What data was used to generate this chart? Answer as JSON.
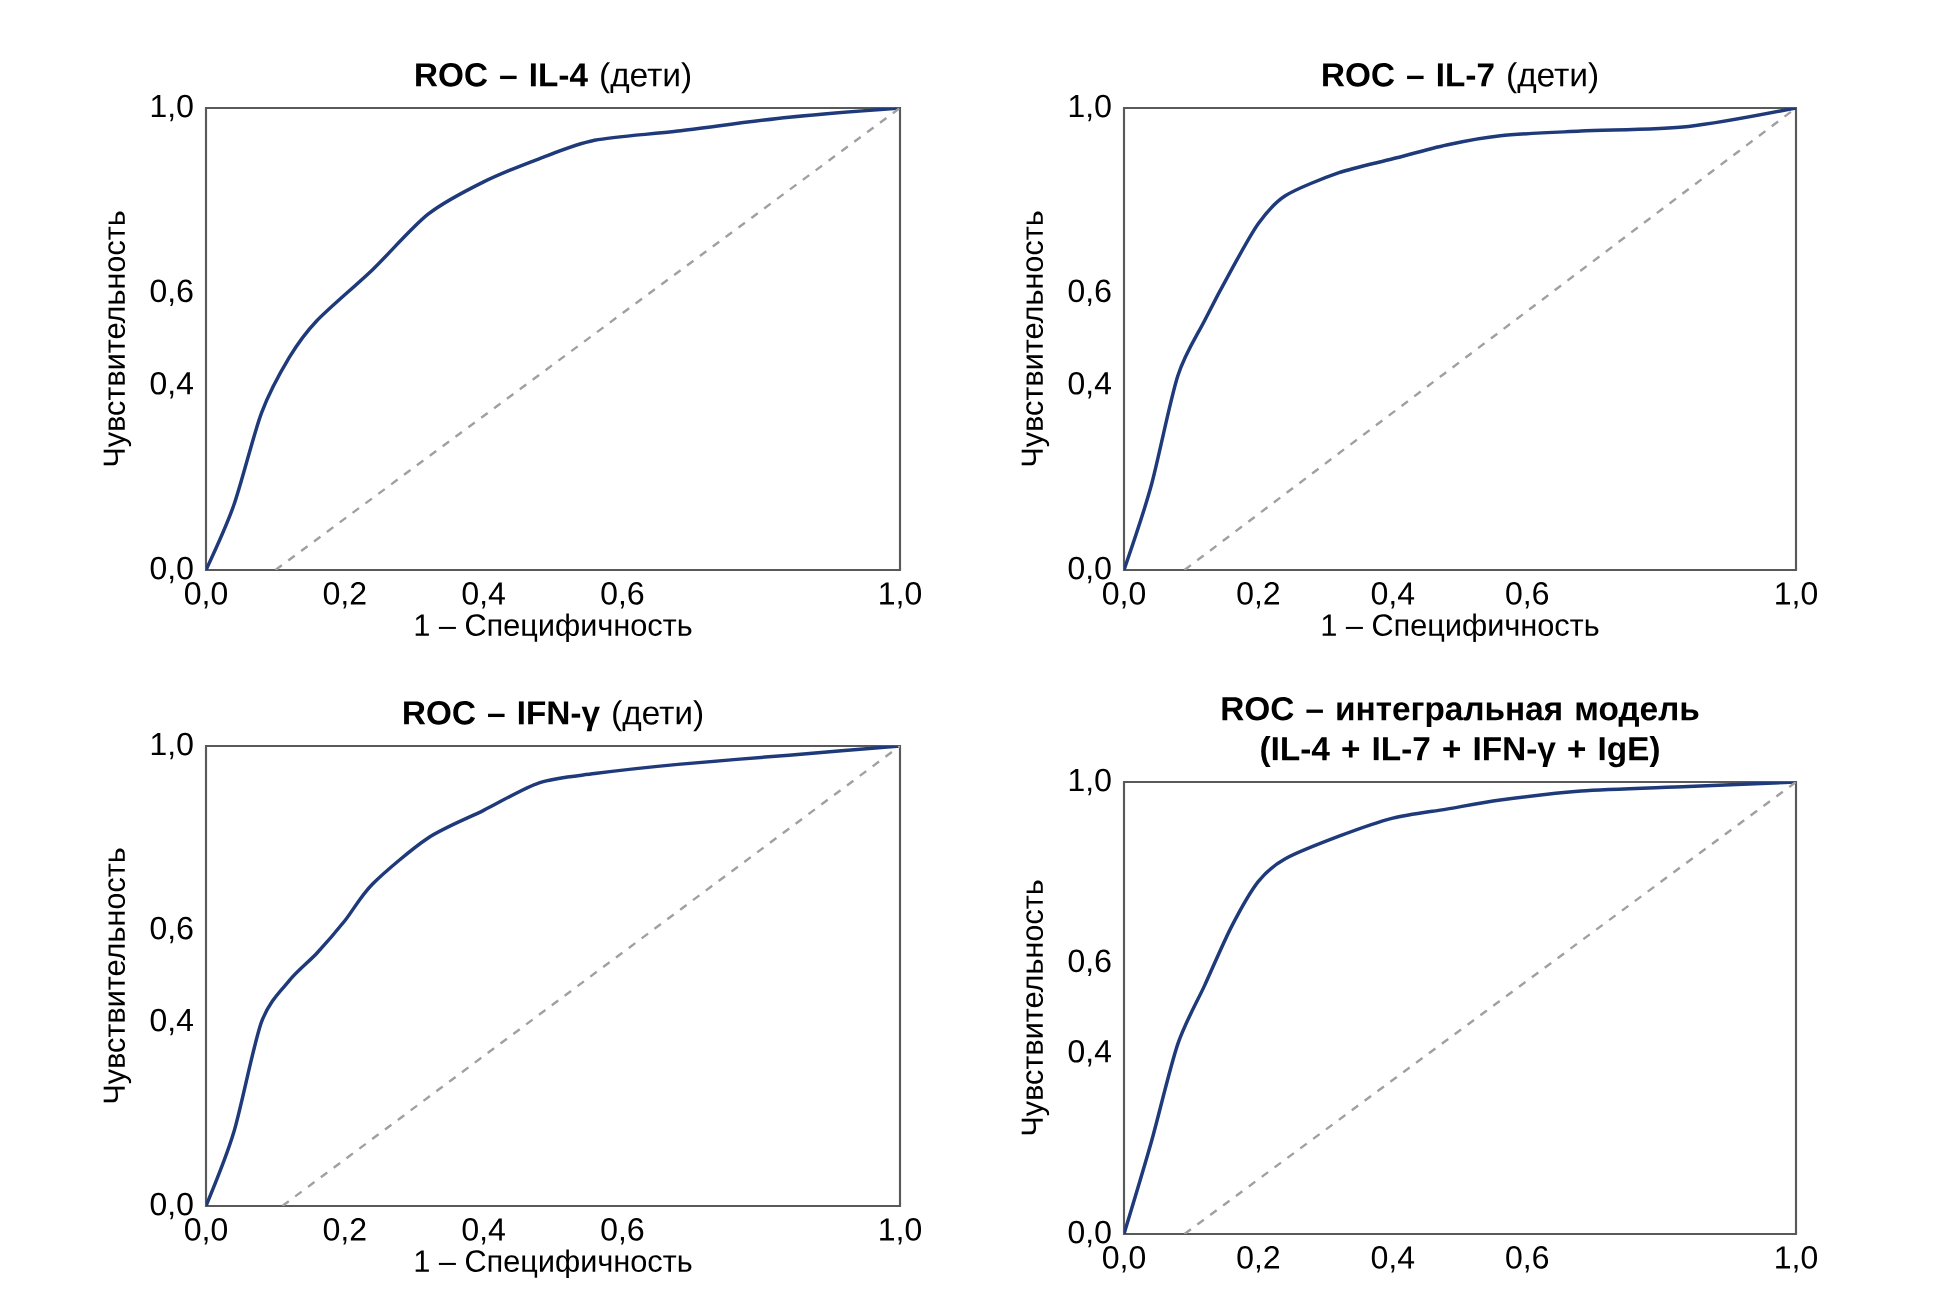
{
  "chart_data": [
    {
      "type": "line",
      "title": "**ROC – IL-4** (дети)",
      "xlabel": "1 – Специфичность",
      "ylabel": "Чувствительность",
      "series": [
        {
          "color": "#1f3a7a",
          "x": [
            0,
            0.04,
            0.08,
            0.12,
            0.16,
            0.24,
            0.32,
            0.4,
            0.48,
            0.56,
            0.68,
            0.84,
            1.0
          ],
          "values": [
            0,
            0.14,
            0.34,
            0.46,
            0.54,
            0.65,
            0.77,
            0.84,
            0.89,
            0.93,
            0.95,
            0.98,
            1.0
          ]
        },
        {
          "color": "#a0a0a0",
          "line_style": "dashed",
          "x": [
            0.1,
            1.0
          ],
          "values": [
            0,
            1.0
          ]
        }
      ],
      "xlim": [
        0,
        1
      ],
      "ylim": [
        0,
        1
      ],
      "xticks": [
        {
          "value": 0,
          "label": "0,0"
        },
        {
          "value": 0.2,
          "label": "0,2"
        },
        {
          "value": 0.4,
          "label": "0,4"
        },
        {
          "value": 0.6,
          "label": "0,6"
        },
        {
          "value": 1.0,
          "label": "1,0"
        }
      ],
      "yticks": [
        {
          "value": 0,
          "label": "0,0"
        },
        {
          "value": 0.4,
          "label": "0,4"
        },
        {
          "value": 0.6,
          "label": "0,6"
        },
        {
          "value": 1.0,
          "label": "1,0"
        }
      ]
    },
    {
      "type": "line",
      "title": "**ROC – IL-7** (дети)",
      "xlabel": "1 – Специфичность",
      "ylabel": "Чувствительность",
      "series": [
        {
          "color": "#1f3a7a",
          "x": [
            0,
            0.04,
            0.08,
            0.12,
            0.16,
            0.2,
            0.24,
            0.32,
            0.4,
            0.48,
            0.56,
            0.68,
            0.84,
            1.0
          ],
          "values": [
            0,
            0.18,
            0.42,
            0.54,
            0.65,
            0.75,
            0.81,
            0.86,
            0.89,
            0.92,
            0.94,
            0.95,
            0.96,
            1.0
          ]
        },
        {
          "color": "#a0a0a0",
          "line_style": "dashed",
          "x": [
            0.09,
            1.0
          ],
          "values": [
            0,
            1.0
          ]
        }
      ],
      "xlim": [
        0,
        1
      ],
      "ylim": [
        0,
        1
      ],
      "xticks": [
        {
          "value": 0,
          "label": "0,0"
        },
        {
          "value": 0.2,
          "label": "0,2"
        },
        {
          "value": 0.4,
          "label": "0,4"
        },
        {
          "value": 0.6,
          "label": "0,6"
        },
        {
          "value": 1.0,
          "label": "1,0"
        }
      ],
      "yticks": [
        {
          "value": 0,
          "label": "0,0"
        },
        {
          "value": 0.4,
          "label": "0,4"
        },
        {
          "value": 0.6,
          "label": "0,6"
        },
        {
          "value": 1.0,
          "label": "1,0"
        }
      ]
    },
    {
      "type": "line",
      "title": "**ROC – IFN-γ** (дети)",
      "xlabel": "1 – Специфичность",
      "ylabel": "Чувствительность",
      "series": [
        {
          "color": "#1f3a7a",
          "x": [
            0,
            0.04,
            0.08,
            0.12,
            0.16,
            0.2,
            0.24,
            0.32,
            0.4,
            0.48,
            0.56,
            0.68,
            0.84,
            1.0
          ],
          "values": [
            0,
            0.16,
            0.4,
            0.49,
            0.55,
            0.62,
            0.7,
            0.8,
            0.86,
            0.92,
            0.94,
            0.96,
            0.98,
            1.0
          ]
        },
        {
          "color": "#a0a0a0",
          "line_style": "dashed",
          "x": [
            0.11,
            1.0
          ],
          "values": [
            0,
            1.0
          ]
        }
      ],
      "xlim": [
        0,
        1
      ],
      "ylim": [
        0,
        1
      ],
      "xticks": [
        {
          "value": 0,
          "label": "0,0"
        },
        {
          "value": 0.2,
          "label": "0,2"
        },
        {
          "value": 0.4,
          "label": "0,4"
        },
        {
          "value": 0.6,
          "label": "0,6"
        },
        {
          "value": 1.0,
          "label": "1,0"
        }
      ],
      "yticks": [
        {
          "value": 0,
          "label": "0,0"
        },
        {
          "value": 0.4,
          "label": "0,4"
        },
        {
          "value": 0.6,
          "label": "0,6"
        },
        {
          "value": 1.0,
          "label": "1,0"
        }
      ]
    },
    {
      "type": "line",
      "title": "**ROC – интегральная модель (IL-4 + IL-7 + IFN-γ + IgE)**",
      "ylabel": "Чувствительность",
      "series": [
        {
          "color": "#1f3a7a",
          "x": [
            0,
            0.04,
            0.08,
            0.12,
            0.16,
            0.2,
            0.24,
            0.32,
            0.4,
            0.48,
            0.56,
            0.68,
            0.84,
            1.0
          ],
          "values": [
            0,
            0.2,
            0.42,
            0.55,
            0.68,
            0.78,
            0.83,
            0.88,
            0.92,
            0.94,
            0.96,
            0.98,
            0.99,
            1.0
          ]
        },
        {
          "color": "#a0a0a0",
          "line_style": "dashed",
          "x": [
            0.09,
            1.0
          ],
          "values": [
            0,
            1.0
          ]
        }
      ],
      "xlim": [
        0,
        1
      ],
      "ylim": [
        0,
        1
      ],
      "xticks": [
        {
          "value": 0,
          "label": "0,0"
        },
        {
          "value": 0.2,
          "label": "0,2"
        },
        {
          "value": 0.4,
          "label": "0,4"
        },
        {
          "value": 0.6,
          "label": "0,6"
        },
        {
          "value": 1.0,
          "label": "1,0"
        }
      ],
      "yticks": [
        {
          "value": 0,
          "label": "0,0"
        },
        {
          "value": 0.4,
          "label": "0,4"
        },
        {
          "value": 0.6,
          "label": "0,6"
        },
        {
          "value": 1.0,
          "label": "1,0"
        }
      ]
    }
  ]
}
